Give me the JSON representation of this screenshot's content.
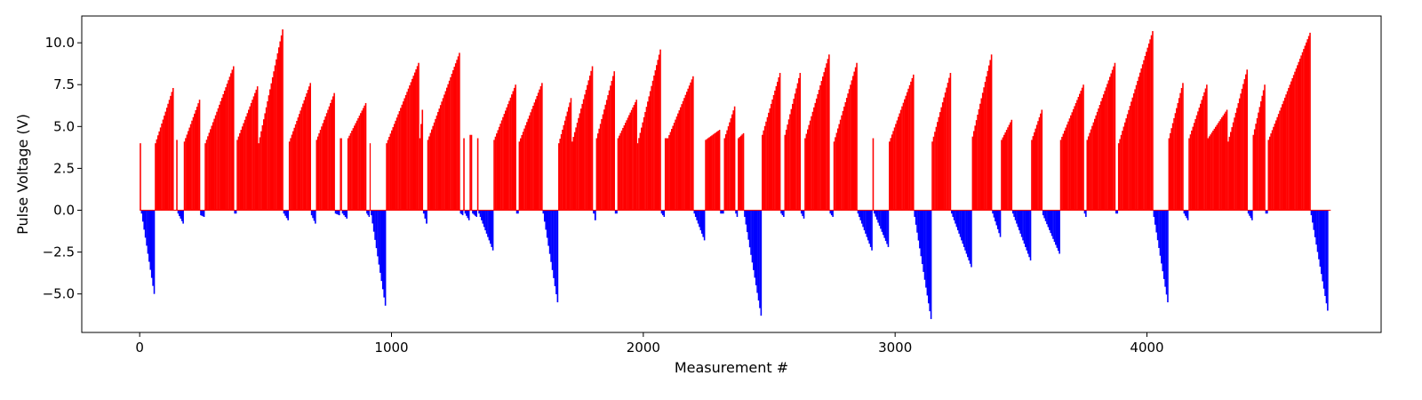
{
  "chart_data": {
    "type": "bar",
    "title": "",
    "xlabel": "Measurement #",
    "ylabel": "Pulse Voltage (V)",
    "xlim": [
      -230,
      4930
    ],
    "ylim": [
      -7.3,
      11.6
    ],
    "xticks": [
      0,
      1000,
      2000,
      3000,
      4000
    ],
    "yticks": [
      -5.0,
      -2.5,
      0.0,
      2.5,
      5.0,
      7.5,
      10.0
    ],
    "xtick_labels": [
      "0",
      "1000",
      "2000",
      "3000",
      "4000"
    ],
    "ytick_labels": [
      "−5.0",
      "−2.5",
      "0.0",
      "2.5",
      "5.0",
      "7.5",
      "10.0"
    ],
    "grid": false,
    "colors": {
      "positive": "#ff0000",
      "negative": "#0000ff"
    },
    "segments": [
      {
        "x0": 0,
        "x1": 5,
        "y0": 4.0,
        "y1": 4.0
      },
      {
        "x0": 5,
        "x1": 60,
        "y0": -0.2,
        "y1": -5.0
      },
      {
        "x0": 60,
        "x1": 135,
        "y0": 4.0,
        "y1": 7.3
      },
      {
        "x0": 135,
        "x1": 145,
        "y0": 0.0,
        "y1": 0.0
      },
      {
        "x0": 145,
        "x1": 150,
        "y0": 4.2,
        "y1": 4.2
      },
      {
        "x0": 150,
        "x1": 175,
        "y0": -0.2,
        "y1": -0.8
      },
      {
        "x0": 175,
        "x1": 240,
        "y0": 4.1,
        "y1": 6.6
      },
      {
        "x0": 240,
        "x1": 258,
        "y0": -0.3,
        "y1": -0.4
      },
      {
        "x0": 258,
        "x1": 375,
        "y0": 4.0,
        "y1": 8.6
      },
      {
        "x0": 375,
        "x1": 385,
        "y0": -0.2,
        "y1": -0.2
      },
      {
        "x0": 385,
        "x1": 470,
        "y0": 4.2,
        "y1": 7.4
      },
      {
        "x0": 470,
        "x1": 570,
        "y0": 4.0,
        "y1": 10.8
      },
      {
        "x0": 570,
        "x1": 592,
        "y0": -0.2,
        "y1": -0.6
      },
      {
        "x0": 592,
        "x1": 680,
        "y0": 4.1,
        "y1": 7.6
      },
      {
        "x0": 680,
        "x1": 700,
        "y0": -0.3,
        "y1": -0.8
      },
      {
        "x0": 700,
        "x1": 775,
        "y0": 4.2,
        "y1": 7.0
      },
      {
        "x0": 775,
        "x1": 795,
        "y0": -0.2,
        "y1": -0.3
      },
      {
        "x0": 795,
        "x1": 803,
        "y0": 4.3,
        "y1": 4.3
      },
      {
        "x0": 803,
        "x1": 825,
        "y0": -0.2,
        "y1": -0.5
      },
      {
        "x0": 825,
        "x1": 900,
        "y0": 4.3,
        "y1": 6.4
      },
      {
        "x0": 900,
        "x1": 913,
        "y0": -0.2,
        "y1": -0.4
      },
      {
        "x0": 913,
        "x1": 917,
        "y0": 4.0,
        "y1": 4.0
      },
      {
        "x0": 917,
        "x1": 978,
        "y0": -0.3,
        "y1": -5.7
      },
      {
        "x0": 978,
        "x1": 1110,
        "y0": 4.0,
        "y1": 8.8
      },
      {
        "x0": 1110,
        "x1": 1125,
        "y0": 4.3,
        "y1": 6.0
      },
      {
        "x0": 1125,
        "x1": 1142,
        "y0": -0.2,
        "y1": -0.8
      },
      {
        "x0": 1142,
        "x1": 1272,
        "y0": 4.2,
        "y1": 9.4
      },
      {
        "x0": 1272,
        "x1": 1285,
        "y0": -0.2,
        "y1": -0.3
      },
      {
        "x0": 1285,
        "x1": 1290,
        "y0": 4.3,
        "y1": 4.3
      },
      {
        "x0": 1290,
        "x1": 1310,
        "y0": -0.2,
        "y1": -0.6
      },
      {
        "x0": 1310,
        "x1": 1320,
        "y0": 4.5,
        "y1": 4.5
      },
      {
        "x0": 1320,
        "x1": 1340,
        "y0": -0.2,
        "y1": -0.4
      },
      {
        "x0": 1340,
        "x1": 1345,
        "y0": 4.3,
        "y1": 4.3
      },
      {
        "x0": 1345,
        "x1": 1405,
        "y0": -0.2,
        "y1": -2.4
      },
      {
        "x0": 1405,
        "x1": 1495,
        "y0": 4.2,
        "y1": 7.5
      },
      {
        "x0": 1495,
        "x1": 1505,
        "y0": -0.2,
        "y1": -0.2
      },
      {
        "x0": 1505,
        "x1": 1600,
        "y0": 4.1,
        "y1": 7.6
      },
      {
        "x0": 1600,
        "x1": 1662,
        "y0": -0.2,
        "y1": -5.5
      },
      {
        "x0": 1662,
        "x1": 1715,
        "y0": 4.0,
        "y1": 6.7
      },
      {
        "x0": 1715,
        "x1": 1800,
        "y0": 4.1,
        "y1": 8.6
      },
      {
        "x0": 1800,
        "x1": 1812,
        "y0": -0.2,
        "y1": -0.6
      },
      {
        "x0": 1812,
        "x1": 1887,
        "y0": 4.3,
        "y1": 8.3
      },
      {
        "x0": 1887,
        "x1": 1897,
        "y0": -0.2,
        "y1": -0.2
      },
      {
        "x0": 1897,
        "x1": 1975,
        "y0": 4.3,
        "y1": 6.6
      },
      {
        "x0": 1975,
        "x1": 2070,
        "y0": 4.0,
        "y1": 9.6
      },
      {
        "x0": 2070,
        "x1": 2085,
        "y0": -0.2,
        "y1": -0.4
      },
      {
        "x0": 2085,
        "x1": 2095,
        "y0": 4.3,
        "y1": 4.3
      },
      {
        "x0": 2095,
        "x1": 2200,
        "y0": 4.3,
        "y1": 8.0
      },
      {
        "x0": 2200,
        "x1": 2245,
        "y0": -0.2,
        "y1": -1.8
      },
      {
        "x0": 2245,
        "x1": 2305,
        "y0": 4.2,
        "y1": 4.8
      },
      {
        "x0": 2305,
        "x1": 2320,
        "y0": -0.2,
        "y1": -0.2
      },
      {
        "x0": 2320,
        "x1": 2365,
        "y0": 4.3,
        "y1": 6.2
      },
      {
        "x0": 2365,
        "x1": 2375,
        "y0": -0.2,
        "y1": -0.4
      },
      {
        "x0": 2375,
        "x1": 2400,
        "y0": 4.3,
        "y1": 4.6
      },
      {
        "x0": 2400,
        "x1": 2470,
        "y0": -0.4,
        "y1": -6.3
      },
      {
        "x0": 2470,
        "x1": 2545,
        "y0": 4.5,
        "y1": 8.2
      },
      {
        "x0": 2545,
        "x1": 2560,
        "y0": -0.2,
        "y1": -0.4
      },
      {
        "x0": 2560,
        "x1": 2625,
        "y0": 4.5,
        "y1": 8.2
      },
      {
        "x0": 2625,
        "x1": 2640,
        "y0": -0.2,
        "y1": -0.5
      },
      {
        "x0": 2640,
        "x1": 2740,
        "y0": 4.3,
        "y1": 9.3
      },
      {
        "x0": 2740,
        "x1": 2755,
        "y0": -0.2,
        "y1": -0.4
      },
      {
        "x0": 2755,
        "x1": 2850,
        "y0": 4.1,
        "y1": 8.8
      },
      {
        "x0": 2850,
        "x1": 2910,
        "y0": -0.2,
        "y1": -2.4
      },
      {
        "x0": 2910,
        "x1": 2915,
        "y0": 4.3,
        "y1": 4.3
      },
      {
        "x0": 2915,
        "x1": 2975,
        "y0": -0.2,
        "y1": -2.2
      },
      {
        "x0": 2975,
        "x1": 3075,
        "y0": 4.1,
        "y1": 8.1
      },
      {
        "x0": 3075,
        "x1": 3145,
        "y0": -0.4,
        "y1": -6.5
      },
      {
        "x0": 3145,
        "x1": 3222,
        "y0": 4.1,
        "y1": 8.2
      },
      {
        "x0": 3222,
        "x1": 3305,
        "y0": -0.2,
        "y1": -3.4
      },
      {
        "x0": 3305,
        "x1": 3385,
        "y0": 4.4,
        "y1": 9.3
      },
      {
        "x0": 3385,
        "x1": 3420,
        "y0": -0.2,
        "y1": -1.6
      },
      {
        "x0": 3420,
        "x1": 3465,
        "y0": 4.2,
        "y1": 5.4
      },
      {
        "x0": 3465,
        "x1": 3540,
        "y0": -0.2,
        "y1": -3.0
      },
      {
        "x0": 3540,
        "x1": 3585,
        "y0": 4.2,
        "y1": 6.0
      },
      {
        "x0": 3585,
        "x1": 3655,
        "y0": -0.3,
        "y1": -2.6
      },
      {
        "x0": 3655,
        "x1": 3750,
        "y0": 4.2,
        "y1": 7.5
      },
      {
        "x0": 3750,
        "x1": 3760,
        "y0": -0.2,
        "y1": -0.4
      },
      {
        "x0": 3760,
        "x1": 3875,
        "y0": 4.2,
        "y1": 8.8
      },
      {
        "x0": 3875,
        "x1": 3885,
        "y0": -0.2,
        "y1": -0.2
      },
      {
        "x0": 3885,
        "x1": 4025,
        "y0": 4.0,
        "y1": 10.7
      },
      {
        "x0": 4025,
        "x1": 4085,
        "y0": -0.4,
        "y1": -5.5
      },
      {
        "x0": 4085,
        "x1": 4145,
        "y0": 4.3,
        "y1": 7.6
      },
      {
        "x0": 4145,
        "x1": 4165,
        "y0": -0.2,
        "y1": -0.6
      },
      {
        "x0": 4165,
        "x1": 4240,
        "y0": 4.3,
        "y1": 7.5
      },
      {
        "x0": 4240,
        "x1": 4320,
        "y0": 4.3,
        "y1": 6.0
      },
      {
        "x0": 4320,
        "x1": 4400,
        "y0": 4.1,
        "y1": 8.4
      },
      {
        "x0": 4400,
        "x1": 4420,
        "y0": -0.2,
        "y1": -0.6
      },
      {
        "x0": 4420,
        "x1": 4470,
        "y0": 4.5,
        "y1": 7.5
      },
      {
        "x0": 4470,
        "x1": 4480,
        "y0": -0.2,
        "y1": -0.2
      },
      {
        "x0": 4480,
        "x1": 4650,
        "y0": 4.2,
        "y1": 10.6
      },
      {
        "x0": 4650,
        "x1": 4720,
        "y0": -0.3,
        "y1": -6.0
      },
      {
        "x0": 4720,
        "x1": 4730,
        "y0": 0.0,
        "y1": 0.0
      }
    ]
  }
}
